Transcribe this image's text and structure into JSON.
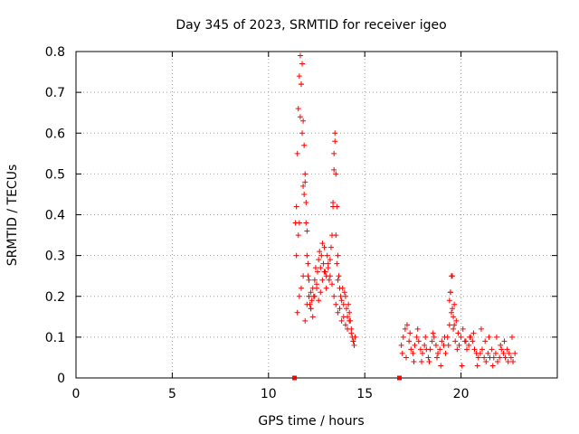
{
  "chart_data": {
    "type": "scatter",
    "title": "Day 345 of 2023, SRMTID for receiver igeo",
    "xlabel": "GPS time / hours",
    "ylabel": "SRMTID / TECUs",
    "xlim": [
      0,
      25
    ],
    "ylim": [
      0,
      0.8
    ],
    "xticks": [
      {
        "value": 0,
        "label": "0"
      },
      {
        "value": 5,
        "label": "5"
      },
      {
        "value": 10,
        "label": "10"
      },
      {
        "value": 15,
        "label": "15"
      },
      {
        "value": 20,
        "label": "20"
      }
    ],
    "yticks": [
      {
        "value": 0,
        "label": "0"
      },
      {
        "value": 0.1,
        "label": "0.1"
      },
      {
        "value": 0.2,
        "label": "0.2"
      },
      {
        "value": 0.3,
        "label": "0.3"
      },
      {
        "value": 0.4,
        "label": "0.4"
      },
      {
        "value": 0.5,
        "label": "0.5"
      },
      {
        "value": 0.6,
        "label": "0.6"
      },
      {
        "value": 0.7,
        "label": "0.7"
      },
      {
        "value": 0.8,
        "label": "0.8"
      }
    ],
    "grid": true,
    "marker_color": "#ff0000",
    "zero_markers": [
      11.35,
      16.8
    ],
    "series": [
      {
        "name": "SRMTID",
        "marker": "plus",
        "x": [
          11.4,
          11.45,
          11.5,
          11.55,
          11.6,
          11.65,
          11.7,
          11.75,
          11.8,
          11.85,
          11.9,
          11.95,
          12.0,
          12.05,
          12.1,
          12.15,
          12.2,
          12.25,
          12.3,
          12.35,
          12.4,
          12.45,
          12.5,
          12.55,
          12.6,
          12.65,
          12.7,
          12.75,
          12.8,
          12.85,
          12.9,
          12.95,
          13.0,
          13.05,
          13.1,
          13.15,
          13.2,
          13.25,
          13.3,
          13.35,
          13.4,
          13.45,
          13.5,
          13.55,
          13.6,
          13.65,
          13.7,
          13.75,
          13.8,
          13.85,
          13.9,
          13.95,
          14.0,
          14.05,
          14.1,
          14.15,
          14.2,
          14.25,
          14.3,
          14.35,
          14.4,
          14.45,
          14.5,
          11.45,
          11.55,
          11.6,
          11.65,
          11.7,
          11.75,
          11.8,
          11.85,
          11.9,
          11.95,
          12.0,
          12.05,
          12.1,
          12.2,
          13.35,
          13.4,
          13.45,
          13.5,
          13.55,
          13.6,
          11.5,
          11.6,
          11.7,
          11.8,
          11.9,
          12.0,
          12.1,
          12.2,
          12.3,
          12.4,
          12.5,
          12.6,
          12.7,
          12.8,
          12.9,
          13.0,
          13.1,
          13.2,
          13.3,
          13.4,
          13.5,
          13.6,
          13.7,
          13.8,
          13.9,
          14.0,
          14.1,
          14.2,
          14.3,
          14.4,
          16.9,
          17.0,
          17.1,
          17.2,
          17.3,
          17.4,
          17.5,
          17.6,
          17.7,
          17.8,
          17.9,
          18.0,
          18.1,
          18.2,
          18.3,
          18.4,
          18.5,
          18.6,
          18.7,
          18.8,
          18.9,
          19.0,
          19.1,
          19.2,
          19.3,
          19.4,
          19.5,
          19.6,
          19.7,
          19.8,
          19.9,
          20.0,
          20.1,
          20.2,
          20.3,
          20.4,
          20.5,
          20.6,
          20.7,
          20.8,
          20.9,
          21.0,
          21.1,
          21.2,
          21.3,
          21.4,
          21.5,
          21.6,
          21.7,
          21.8,
          21.9,
          22.0,
          22.1,
          22.2,
          22.3,
          22.4,
          22.5,
          22.6,
          22.7,
          22.8,
          16.95,
          17.15,
          17.35,
          17.55,
          17.75,
          17.95,
          18.15,
          18.35,
          18.55,
          18.75,
          18.95,
          19.15,
          19.35,
          19.45,
          19.55,
          19.65,
          19.75,
          19.85,
          20.05,
          20.25,
          20.45,
          20.65,
          20.85,
          21.05,
          21.25,
          21.45,
          21.65,
          21.85,
          22.05,
          22.25,
          22.45,
          22.65,
          19.4,
          19.45,
          19.5,
          19.55,
          19.6,
          19.65
        ],
        "y": [
          0.38,
          0.42,
          0.55,
          0.66,
          0.74,
          0.79,
          0.72,
          0.6,
          0.47,
          0.45,
          0.5,
          0.38,
          0.3,
          0.25,
          0.2,
          0.18,
          0.17,
          0.19,
          0.22,
          0.2,
          0.24,
          0.27,
          0.22,
          0.26,
          0.29,
          0.31,
          0.27,
          0.3,
          0.33,
          0.28,
          0.32,
          0.26,
          0.25,
          0.3,
          0.27,
          0.24,
          0.29,
          0.32,
          0.35,
          0.42,
          0.55,
          0.6,
          0.5,
          0.42,
          0.3,
          0.25,
          0.22,
          0.2,
          0.19,
          0.22,
          0.18,
          0.21,
          0.2,
          0.17,
          0.15,
          0.18,
          0.16,
          0.14,
          0.12,
          0.1,
          0.09,
          0.08,
          0.1,
          0.3,
          0.35,
          0.38,
          0.64,
          0.72,
          0.77,
          0.63,
          0.57,
          0.48,
          0.43,
          0.36,
          0.28,
          0.24,
          0.21,
          0.43,
          0.51,
          0.58,
          0.35,
          0.28,
          0.24,
          0.16,
          0.2,
          0.22,
          0.25,
          0.14,
          0.18,
          0.2,
          0.17,
          0.15,
          0.2,
          0.23,
          0.19,
          0.21,
          0.24,
          0.26,
          0.22,
          0.28,
          0.25,
          0.23,
          0.2,
          0.18,
          0.16,
          0.17,
          0.14,
          0.15,
          0.13,
          0.12,
          0.14,
          0.11,
          0.09,
          0.08,
          0.1,
          0.12,
          0.13,
          0.09,
          0.07,
          0.06,
          0.08,
          0.1,
          0.09,
          0.07,
          0.06,
          0.08,
          0.07,
          0.05,
          0.07,
          0.09,
          0.1,
          0.08,
          0.06,
          0.07,
          0.09,
          0.08,
          0.06,
          0.1,
          0.13,
          0.16,
          0.12,
          0.09,
          0.07,
          0.08,
          0.1,
          0.12,
          0.09,
          0.07,
          0.08,
          0.1,
          0.09,
          0.07,
          0.06,
          0.05,
          0.06,
          0.07,
          0.05,
          0.04,
          0.06,
          0.05,
          0.07,
          0.05,
          0.06,
          0.04,
          0.05,
          0.07,
          0.06,
          0.05,
          0.07,
          0.06,
          0.05,
          0.04,
          0.06,
          0.06,
          0.05,
          0.11,
          0.04,
          0.12,
          0.04,
          0.1,
          0.04,
          0.11,
          0.05,
          0.03,
          0.1,
          0.08,
          0.21,
          0.25,
          0.18,
          0.14,
          0.11,
          0.03,
          0.09,
          0.1,
          0.11,
          0.03,
          0.12,
          0.09,
          0.1,
          0.03,
          0.1,
          0.08,
          0.09,
          0.04,
          0.1,
          0.19,
          0.21,
          0.25,
          0.17,
          0.15,
          0.13
        ]
      }
    ]
  }
}
